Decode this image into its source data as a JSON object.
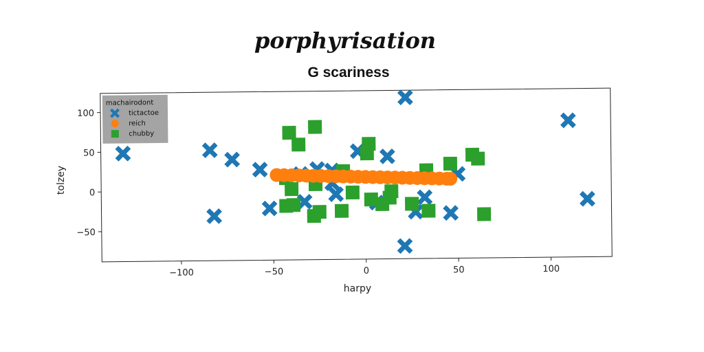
{
  "page": {
    "title": "porphyrisation"
  },
  "chart_data": {
    "type": "scatter",
    "title": "G scariness",
    "xlabel": "harpy",
    "ylabel": "tolzey",
    "xlim": [
      -143,
      133
    ],
    "ylim": [
      -88,
      124
    ],
    "xticks": [
      -100,
      -50,
      0,
      50,
      100
    ],
    "yticks": [
      -50,
      0,
      50,
      100
    ],
    "xtick_labels": [
      "−100",
      "−50",
      "0",
      "50",
      "100"
    ],
    "ytick_labels": [
      "−50",
      "0",
      "50",
      "100"
    ],
    "grid": false,
    "legend": {
      "title": "machairodont",
      "placement": "top-left",
      "entries": [
        "tictactoe",
        "reich",
        "chubby"
      ]
    },
    "series": [
      {
        "name": "tictactoe",
        "marker": "x-filled",
        "color": "#1f77b4",
        "points": [
          {
            "x": 22,
            "y": 115
          },
          {
            "x": 110,
            "y": 84
          },
          {
            "x": -131,
            "y": 48
          },
          {
            "x": -84,
            "y": 51
          },
          {
            "x": -72,
            "y": 39
          },
          {
            "x": -57,
            "y": 26
          },
          {
            "x": -35,
            "y": 20
          },
          {
            "x": -26,
            "y": 26
          },
          {
            "x": -18,
            "y": 24
          },
          {
            "x": -4,
            "y": 48
          },
          {
            "x": 12,
            "y": 41
          },
          {
            "x": 50,
            "y": 18
          },
          {
            "x": -18,
            "y": 8
          },
          {
            "x": -16,
            "y": -6
          },
          {
            "x": -33,
            "y": -15
          },
          {
            "x": -52,
            "y": -23
          },
          {
            "x": 6,
            "y": -17
          },
          {
            "x": 32,
            "y": -11
          },
          {
            "x": 27,
            "y": -29
          },
          {
            "x": 46,
            "y": -31
          },
          {
            "x": -82,
            "y": -32
          },
          {
            "x": 21,
            "y": -72
          },
          {
            "x": 120,
            "y": -15
          }
        ]
      },
      {
        "name": "reich",
        "marker": "circle",
        "color": "#ff7f0e",
        "points": [
          {
            "x": -48,
            "y": 19
          },
          {
            "x": -44,
            "y": 18.7
          },
          {
            "x": -40,
            "y": 18.4
          },
          {
            "x": -36,
            "y": 18.1
          },
          {
            "x": -32,
            "y": 17.8
          },
          {
            "x": -28,
            "y": 17.5
          },
          {
            "x": -24,
            "y": 17.2
          },
          {
            "x": -20,
            "y": 16.9
          },
          {
            "x": -16,
            "y": 16.6
          },
          {
            "x": -12,
            "y": 16.3
          },
          {
            "x": -8,
            "y": 16
          },
          {
            "x": -4,
            "y": 15.7
          },
          {
            "x": 0,
            "y": 15.4
          },
          {
            "x": 4,
            "y": 15.1
          },
          {
            "x": 8,
            "y": 14.8
          },
          {
            "x": 12,
            "y": 14.5
          },
          {
            "x": 16,
            "y": 14.2
          },
          {
            "x": 20,
            "y": 13.9
          },
          {
            "x": 24,
            "y": 13.6
          },
          {
            "x": 28,
            "y": 13.3
          },
          {
            "x": 32,
            "y": 13
          },
          {
            "x": 36,
            "y": 12.7
          },
          {
            "x": 40,
            "y": 12.4
          },
          {
            "x": 44,
            "y": 12.1
          },
          {
            "x": 46,
            "y": 12
          }
        ]
      },
      {
        "name": "chubby",
        "marker": "square",
        "color": "#2ca02c",
        "points": [
          {
            "x": -41,
            "y": 72
          },
          {
            "x": -27,
            "y": 79
          },
          {
            "x": -36,
            "y": 57
          },
          {
            "x": 2,
            "y": 57
          },
          {
            "x": 1,
            "y": 45
          },
          {
            "x": 58,
            "y": 42
          },
          {
            "x": 61,
            "y": 37
          },
          {
            "x": 46,
            "y": 31
          },
          {
            "x": 33,
            "y": 23
          },
          {
            "x": -12,
            "y": 23
          },
          {
            "x": -43,
            "y": 15
          },
          {
            "x": -40,
            "y": 1
          },
          {
            "x": -27,
            "y": 7
          },
          {
            "x": -7,
            "y": -4
          },
          {
            "x": 14,
            "y": -3
          },
          {
            "x": 13,
            "y": -11
          },
          {
            "x": 3,
            "y": -13
          },
          {
            "x": 9,
            "y": -19
          },
          {
            "x": 25,
            "y": -19
          },
          {
            "x": -43,
            "y": -20
          },
          {
            "x": -39,
            "y": -19
          },
          {
            "x": -25,
            "y": -28
          },
          {
            "x": -28,
            "y": -33
          },
          {
            "x": -13,
            "y": -27
          },
          {
            "x": 34,
            "y": -28
          },
          {
            "x": 64,
            "y": -33
          }
        ]
      }
    ]
  }
}
